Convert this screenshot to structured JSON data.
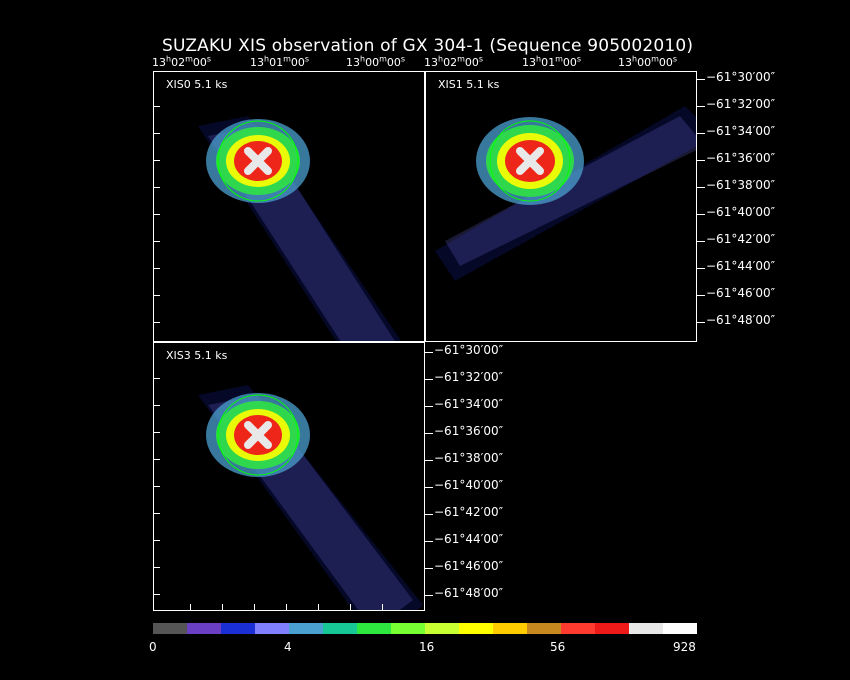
{
  "title": "SUZAKU XIS observation of GX 304-1  (Sequence 905002010)",
  "panels": [
    {
      "id": "xis0",
      "label": "XIS0 5.1 ks"
    },
    {
      "id": "xis1",
      "label": "XIS1 5.1 ks"
    },
    {
      "id": "xis3",
      "label": "XIS3 5.1 ks"
    }
  ],
  "ra_ticks": [
    "13h02m00s",
    "13h01m00s",
    "13h00m00s"
  ],
  "ra_parts": [
    {
      "h": "13",
      "m": "02",
      "s": "00"
    },
    {
      "h": "13",
      "m": "01",
      "s": "00"
    },
    {
      "h": "13",
      "m": "00",
      "s": "00"
    }
  ],
  "dec_ticks": [
    "−61°30′00″",
    "−61°32′00″",
    "−61°34′00″",
    "−61°36′00″",
    "−61°38′00″",
    "−61°40′00″",
    "−61°42′00″",
    "−61°44′00″",
    "−61°46′00″",
    "−61°48′00″"
  ],
  "colorbar": {
    "colors": [
      "#555555",
      "#6a3fc4",
      "#1b2fd6",
      "#7f7fff",
      "#4aa0d0",
      "#17c896",
      "#2ee840",
      "#77ff33",
      "#c8ff33",
      "#ffff00",
      "#ffcc00",
      "#c88a1e",
      "#ff3b2f",
      "#ee1a1a",
      "#e8e8e8",
      "#ffffff"
    ],
    "labels": [
      "0",
      "4",
      "16",
      "56",
      "928"
    ]
  }
}
